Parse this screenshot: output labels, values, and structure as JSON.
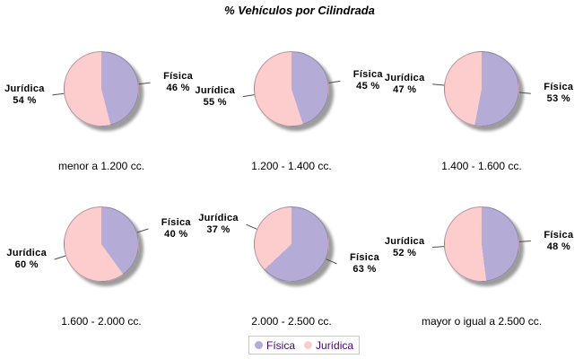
{
  "colors": {
    "fisica": "#b4abd6",
    "juridica": "#fdcdce",
    "shadow": "#9c9c9c",
    "leader_line": "#4d4d4d",
    "label_text": "#000000"
  },
  "legend": {
    "border": "#c9c9c9",
    "text_color": "#4b0082",
    "items": [
      {
        "label": "Física",
        "color": "#b4abd6"
      },
      {
        "label": "Jurídica",
        "color": "#fdcdce"
      }
    ]
  },
  "chart_data": {
    "type": "pie",
    "title": "% Vehículos por Cilindrada",
    "series_labels": [
      "Física",
      "Jurídica"
    ],
    "unit": "%",
    "legend_position": "bottom-center",
    "layout": "2 rows x 3 columns of pies",
    "charts": [
      {
        "category": "menor a 1.200 cc.",
        "slices": [
          {
            "name": "Física",
            "value": 46,
            "value_label": "46 %"
          },
          {
            "name": "Jurídica",
            "value": 54,
            "value_label": "54 %"
          }
        ]
      },
      {
        "category": "1.200 - 1.400 cc.",
        "slices": [
          {
            "name": "Física",
            "value": 45,
            "value_label": "45 %"
          },
          {
            "name": "Jurídica",
            "value": 55,
            "value_label": "55 %"
          }
        ]
      },
      {
        "category": "1.400 - 1.600 cc.",
        "slices": [
          {
            "name": "Física",
            "value": 53,
            "value_label": "53 %"
          },
          {
            "name": "Jurídica",
            "value": 47,
            "value_label": "47 %"
          }
        ]
      },
      {
        "category": "1.600 - 2.000 cc.",
        "slices": [
          {
            "name": "Física",
            "value": 40,
            "value_label": "40 %"
          },
          {
            "name": "Jurídica",
            "value": 60,
            "value_label": "60 %"
          }
        ]
      },
      {
        "category": "2.000 - 2.500 cc.",
        "slices": [
          {
            "name": "Física",
            "value": 63,
            "value_label": "63 %"
          },
          {
            "name": "Jurídica",
            "value": 37,
            "value_label": "37 %"
          }
        ]
      },
      {
        "category": "mayor o igual a 2.500 cc.",
        "slices": [
          {
            "name": "Física",
            "value": 48,
            "value_label": "48 %"
          },
          {
            "name": "Jurídica",
            "value": 52,
            "value_label": "52 %"
          }
        ]
      }
    ]
  }
}
